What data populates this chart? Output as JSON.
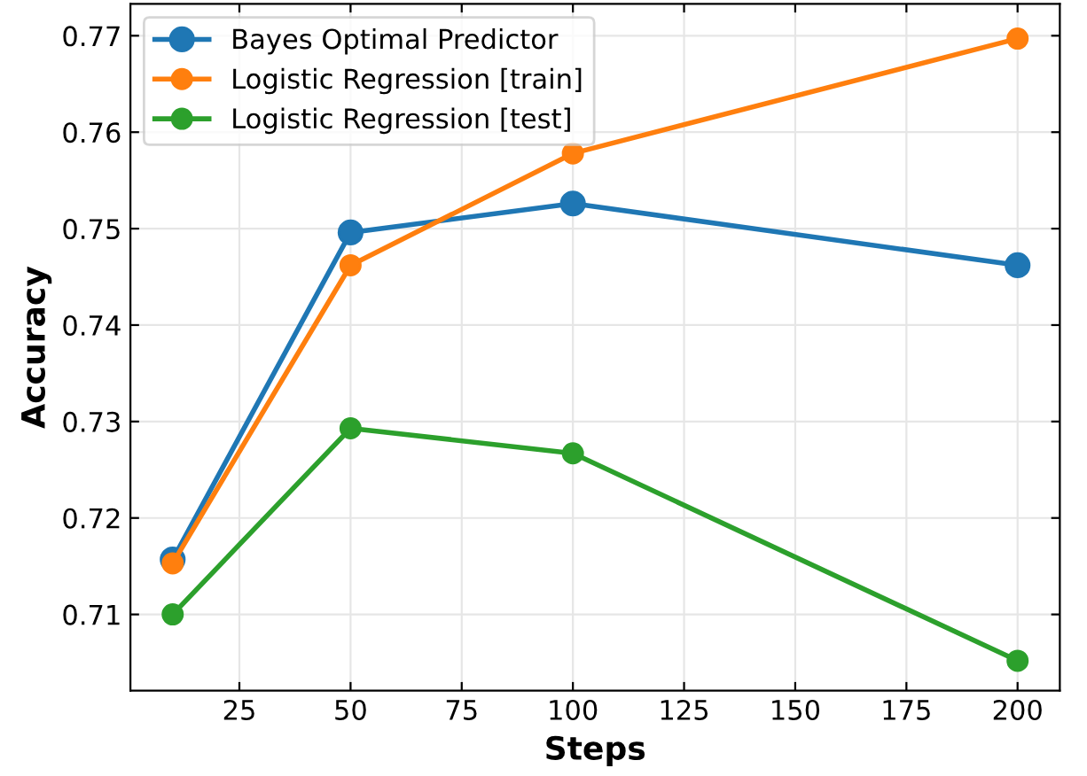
{
  "chart_data": {
    "type": "line",
    "xlabel": "Steps",
    "ylabel": "Accuracy",
    "x": [
      10,
      50,
      100,
      200
    ],
    "series": [
      {
        "name": "Bayes Optimal Predictor",
        "color": "#1f77b4",
        "values": [
          0.7157,
          0.7496,
          0.7526,
          0.7462
        ]
      },
      {
        "name": "Logistic Regression [train]",
        "color": "#ff7f0e",
        "values": [
          0.7153,
          0.7462,
          0.7578,
          0.7697
        ]
      },
      {
        "name": "Logistic Regression [test]",
        "color": "#2ca02c",
        "values": [
          0.71,
          0.7293,
          0.7267,
          0.7052
        ]
      }
    ],
    "xlim": [
      0.5,
      209.5
    ],
    "ylim": [
      0.7021,
      0.7733
    ],
    "xticks": [
      25,
      50,
      75,
      100,
      125,
      150,
      175,
      200
    ],
    "yticks": [
      0.71,
      0.72,
      0.73,
      0.74,
      0.75,
      0.76,
      0.77
    ],
    "grid": true,
    "legend": "top left",
    "marker": "circle",
    "line_style": "solid"
  }
}
